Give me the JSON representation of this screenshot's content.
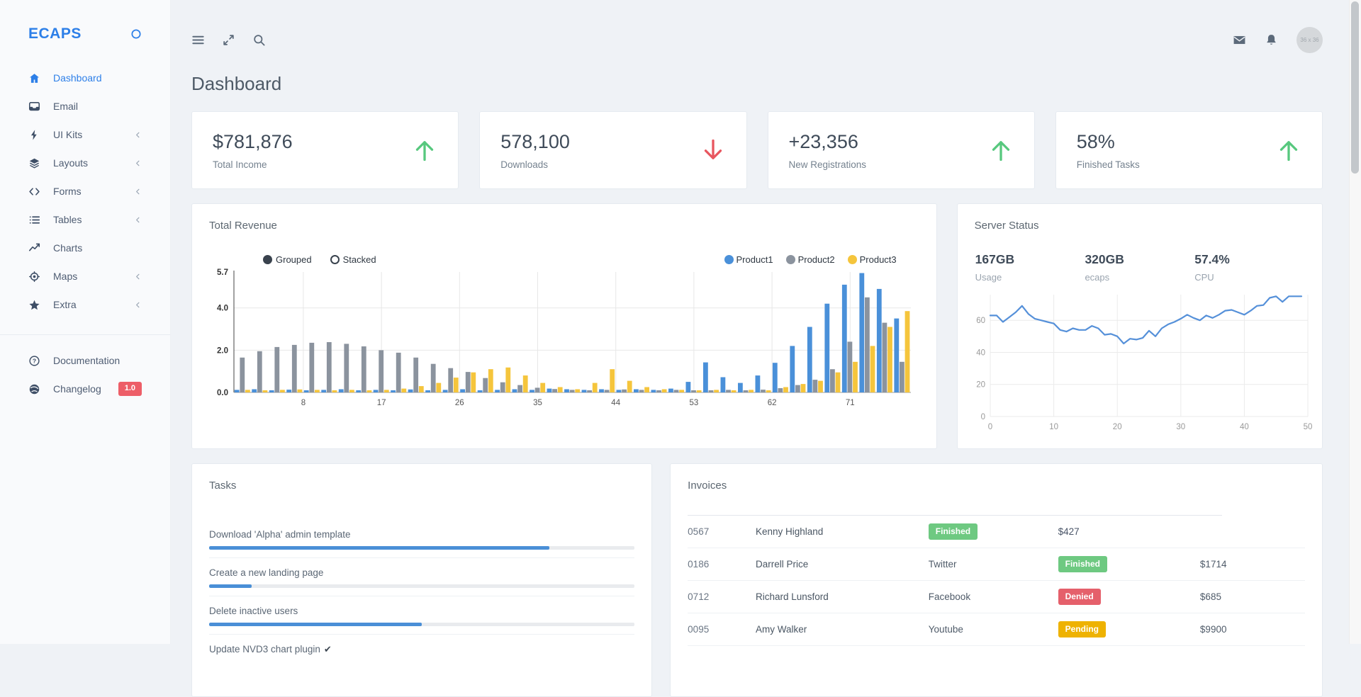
{
  "page": {
    "title": "Dashboard"
  },
  "topbar": {
    "left_icons": [
      "menu",
      "maximize",
      "search"
    ],
    "right_icons": [
      "mail",
      "bell"
    ],
    "avatar_text": "36 x 36"
  },
  "sidebar": {
    "logo": "ECAPS",
    "logo_icon": "circle",
    "items": [
      {
        "label": "Dashboard",
        "icon": "home",
        "active": true,
        "chevron": false
      },
      {
        "label": "Email",
        "icon": "inbox",
        "active": false,
        "chevron": false
      },
      {
        "label": "UI Kits",
        "icon": "zap",
        "active": false,
        "chevron": true
      },
      {
        "label": "Layouts",
        "icon": "layers",
        "active": false,
        "chevron": true
      },
      {
        "label": "Forms",
        "icon": "code",
        "active": false,
        "chevron": true
      },
      {
        "label": "Tables",
        "icon": "list",
        "active": false,
        "chevron": true
      },
      {
        "label": "Charts",
        "icon": "trending-up",
        "active": false,
        "chevron": false
      },
      {
        "label": "Maps",
        "icon": "crosshair",
        "active": false,
        "chevron": true
      },
      {
        "label": "Extra",
        "icon": "star",
        "active": false,
        "chevron": true
      }
    ],
    "footer_items": [
      {
        "label": "Documentation",
        "icon": "help-circle",
        "badge": ""
      },
      {
        "label": "Changelog",
        "icon": "globe",
        "badge": "1.0"
      }
    ]
  },
  "stat_cards": [
    {
      "value": "$781,876",
      "label": "Total Income",
      "trend": "up"
    },
    {
      "value": "578,100",
      "label": "Downloads",
      "trend": "down"
    },
    {
      "value": "+23,356",
      "label": "New Registrations",
      "trend": "up"
    },
    {
      "value": "58%",
      "label": "Finished Tasks",
      "trend": "up"
    }
  ],
  "server": {
    "title": "Server Status",
    "stats": [
      {
        "value": "167GB",
        "label": "Usage"
      },
      {
        "value": "320GB",
        "label": "ecaps"
      },
      {
        "value": "57.4%",
        "label": "CPU"
      }
    ]
  },
  "tasks": {
    "title": "Tasks",
    "items": [
      {
        "label": "Download 'Alpha' admin template",
        "progress": 80,
        "done": false
      },
      {
        "label": "Create a new landing page",
        "progress": 10,
        "done": false
      },
      {
        "label": "Delete inactive users",
        "progress": 50,
        "done": false
      },
      {
        "label": "Update NVD3 chart plugin",
        "progress": 100,
        "done": true
      }
    ]
  },
  "invoices": {
    "title": "Invoices",
    "status_colors": {
      "Finished": "#6ec981",
      "Denied": "#e5606b",
      "Pending": "#eeb202"
    },
    "rows": [
      [
        "0567",
        "Kenny Highland",
        {
          "badge": "Finished"
        },
        "$427",
        ""
      ],
      [
        "0186",
        "Darrell Price",
        "Twitter",
        {
          "badge": "Finished"
        },
        "$1714"
      ],
      [
        "0712",
        "Richard Lunsford",
        "Facebook",
        {
          "badge": "Denied"
        },
        "$685"
      ],
      [
        "0095",
        "Amy Walker",
        "Youtube",
        {
          "badge": "Pending"
        },
        "$9900"
      ]
    ]
  },
  "chart_data": [
    {
      "type": "bar",
      "title": "Total Revenue",
      "modes": [
        "Grouped",
        "Stacked"
      ],
      "selected_mode": "Grouped",
      "x_ticks": [
        8,
        17,
        26,
        35,
        44,
        53,
        62,
        71
      ],
      "y_ticks": [
        0.0,
        2.0,
        4.0,
        5.7
      ],
      "ylim": [
        0,
        5.7
      ],
      "xlim": [
        0,
        78
      ],
      "x_start": 1,
      "x_step": 2,
      "grid": true,
      "legend_position": "top-right",
      "series": [
        {
          "name": "Product1",
          "color": "#4a90d9",
          "values": [
            0.12,
            0.15,
            0.1,
            0.13,
            0.1,
            0.12,
            0.15,
            0.1,
            0.12,
            0.1,
            0.14,
            0.1,
            0.12,
            0.15,
            0.1,
            0.12,
            0.15,
            0.12,
            0.18,
            0.15,
            0.12,
            0.15,
            0.12,
            0.15,
            0.12,
            0.18,
            0.5,
            1.42,
            0.72,
            0.45,
            0.8,
            1.4,
            2.2,
            3.1,
            4.2,
            5.1,
            5.65,
            4.9,
            3.5
          ]
        },
        {
          "name": "Product2",
          "color": "#8b939e",
          "values": [
            1.65,
            1.95,
            2.15,
            2.25,
            2.35,
            2.38,
            2.3,
            2.18,
            2.0,
            1.88,
            1.65,
            1.35,
            1.15,
            0.97,
            0.68,
            0.48,
            0.35,
            0.22,
            0.16,
            0.12,
            0.1,
            0.12,
            0.14,
            0.12,
            0.1,
            0.12,
            0.1,
            0.1,
            0.12,
            0.1,
            0.13,
            0.2,
            0.35,
            0.6,
            1.1,
            2.4,
            4.5,
            3.3,
            1.45
          ]
        },
        {
          "name": "Product3",
          "color": "#f5c53c",
          "values": [
            0.12,
            0.1,
            0.12,
            0.14,
            0.12,
            0.1,
            0.12,
            0.1,
            0.12,
            0.18,
            0.3,
            0.45,
            0.7,
            0.95,
            1.1,
            1.18,
            0.8,
            0.45,
            0.25,
            0.15,
            0.45,
            1.1,
            0.55,
            0.25,
            0.15,
            0.12,
            0.1,
            0.12,
            0.1,
            0.12,
            0.1,
            0.25,
            0.4,
            0.55,
            0.95,
            1.45,
            2.2,
            3.1,
            3.85
          ]
        }
      ]
    },
    {
      "type": "line",
      "title": "Server Status CPU history",
      "x_ticks": [
        0,
        10,
        20,
        30,
        40,
        50
      ],
      "y_ticks": [
        0,
        20,
        40,
        60
      ],
      "ylim": [
        0,
        76
      ],
      "xlim": [
        0,
        50
      ],
      "grid": true,
      "color": "#5590d9",
      "values": [
        63,
        63,
        59,
        62,
        65,
        69,
        64,
        61,
        60,
        59,
        58,
        54,
        53,
        55,
        54,
        54,
        56.5,
        55,
        51,
        51.5,
        50,
        45.5,
        48.5,
        48,
        49,
        53.5,
        50,
        55,
        57.5,
        59,
        61,
        63.5,
        61.5,
        60,
        63,
        61.5,
        63.5,
        66,
        66.5,
        65,
        63.5,
        66,
        69,
        69.5,
        74,
        75,
        71.5,
        75,
        75,
        75
      ]
    }
  ],
  "colors": {
    "accent": "#2d7fe8",
    "trend_up": "#57c87e",
    "trend_down": "#e8565f",
    "progress": "#4a8fd7",
    "changelog_badge": "#ed5e68"
  }
}
